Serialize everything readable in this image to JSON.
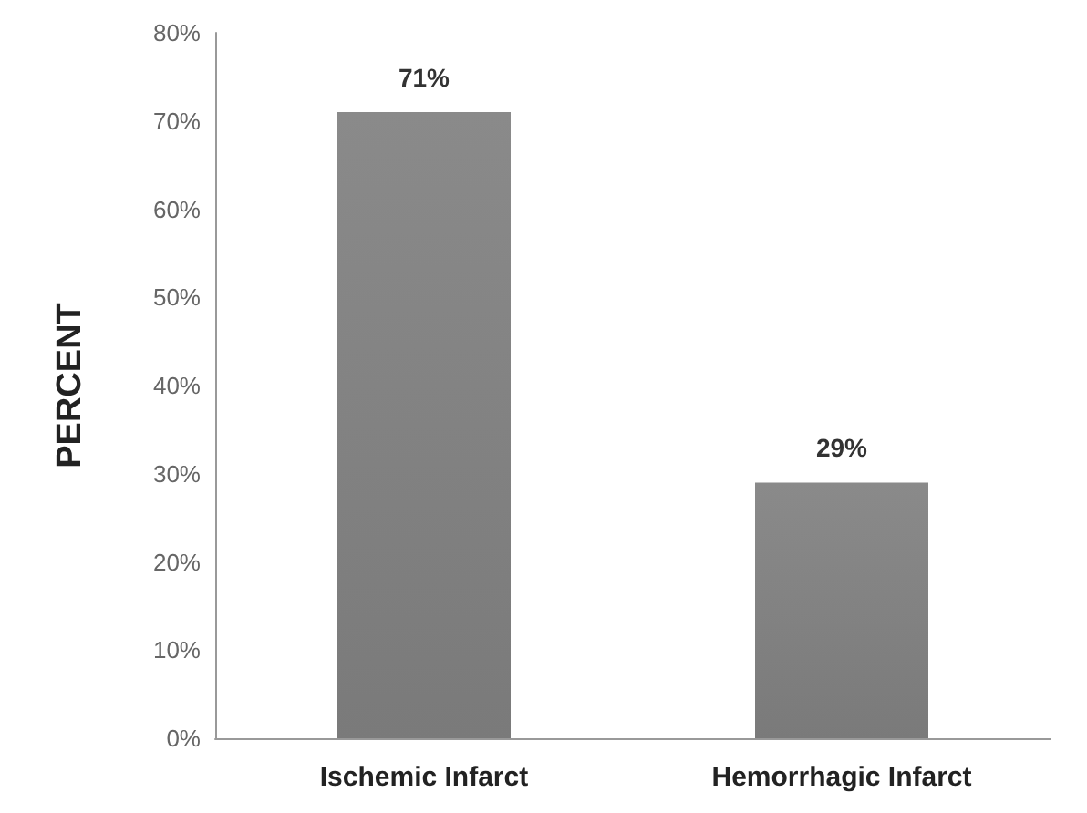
{
  "chart_data": {
    "type": "bar",
    "ylabel": "PERCENT",
    "categories": [
      "Ischemic Infarct",
      "Hemorrhagic Infarct"
    ],
    "values": [
      71,
      29
    ],
    "color": "#7a7a7a",
    "value_labels": [
      "71%",
      "29%"
    ],
    "ylim": [
      0,
      80
    ],
    "yticks": [
      {
        "value": 0,
        "label": "0%"
      },
      {
        "value": 10,
        "label": "10%"
      },
      {
        "value": 20,
        "label": "20%"
      },
      {
        "value": 30,
        "label": "30%"
      },
      {
        "value": 40,
        "label": "40%"
      },
      {
        "value": 50,
        "label": "50%"
      },
      {
        "value": 60,
        "label": "60%"
      },
      {
        "value": 70,
        "label": "70%"
      },
      {
        "value": 80,
        "label": "80%"
      }
    ],
    "grid": false
  }
}
